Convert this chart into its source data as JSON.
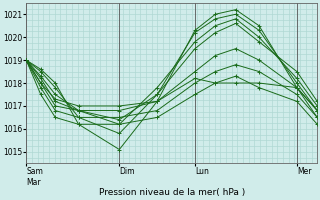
{
  "xlabel": "Pression niveau de la mer( hPa )",
  "ylim": [
    1014.5,
    1021.5
  ],
  "yticks": [
    1015,
    1016,
    1017,
    1018,
    1019,
    1020,
    1021
  ],
  "xtick_labels": [
    "Sam\nMar",
    "Dim",
    "Lun",
    "Mer"
  ],
  "xtick_positions": [
    0.0,
    0.32,
    0.58,
    0.93
  ],
  "day_vlines": [
    0.0,
    0.32,
    0.58,
    0.93
  ],
  "bg_color": "#d0ecea",
  "grid_color": "#b0d8d4",
  "line_color": "#1a6b1a",
  "xlim": [
    0.0,
    1.0
  ],
  "lines": [
    {
      "x": [
        0.0,
        0.05,
        0.1,
        0.18,
        0.32,
        0.45,
        0.58,
        0.65,
        0.72,
        0.8,
        0.93,
        1.0
      ],
      "y": [
        1019.0,
        1018.6,
        1018.0,
        1016.2,
        1015.1,
        1017.2,
        1020.3,
        1021.0,
        1021.2,
        1020.5,
        1017.8,
        1016.5
      ]
    },
    {
      "x": [
        0.0,
        0.05,
        0.1,
        0.18,
        0.32,
        0.45,
        0.58,
        0.65,
        0.72,
        0.8,
        0.93,
        1.0
      ],
      "y": [
        1019.0,
        1018.5,
        1017.8,
        1016.5,
        1015.8,
        1017.5,
        1020.2,
        1020.8,
        1021.0,
        1020.3,
        1018.0,
        1016.8
      ]
    },
    {
      "x": [
        0.0,
        0.05,
        0.1,
        0.18,
        0.32,
        0.45,
        0.58,
        0.65,
        0.72,
        0.8,
        0.93,
        1.0
      ],
      "y": [
        1019.0,
        1018.3,
        1017.5,
        1016.8,
        1016.2,
        1017.8,
        1019.8,
        1020.5,
        1020.8,
        1020.0,
        1018.2,
        1017.0
      ]
    },
    {
      "x": [
        0.0,
        0.05,
        0.1,
        0.18,
        0.32,
        0.45,
        0.58,
        0.65,
        0.72,
        0.8,
        0.93,
        1.0
      ],
      "y": [
        1019.0,
        1018.2,
        1017.2,
        1016.8,
        1016.4,
        1017.5,
        1019.5,
        1020.2,
        1020.6,
        1019.8,
        1018.5,
        1017.2
      ]
    },
    {
      "x": [
        0.0,
        0.05,
        0.1,
        0.18,
        0.32,
        0.45,
        0.58,
        0.65,
        0.72,
        0.8,
        0.93,
        1.0
      ],
      "y": [
        1019.0,
        1018.0,
        1017.0,
        1016.8,
        1016.8,
        1017.2,
        1018.5,
        1019.2,
        1019.5,
        1019.0,
        1017.8,
        1016.8
      ]
    },
    {
      "x": [
        0.0,
        0.05,
        0.1,
        0.18,
        0.32,
        0.45,
        0.58,
        0.65,
        0.72,
        0.8,
        0.93,
        1.0
      ],
      "y": [
        1019.0,
        1017.8,
        1016.8,
        1016.5,
        1016.5,
        1016.8,
        1018.0,
        1018.5,
        1018.8,
        1018.5,
        1017.5,
        1016.5
      ]
    },
    {
      "x": [
        0.0,
        0.05,
        0.1,
        0.18,
        0.32,
        0.45,
        0.58,
        0.65,
        0.72,
        0.8,
        0.93,
        1.0
      ],
      "y": [
        1019.0,
        1017.5,
        1016.5,
        1016.2,
        1016.2,
        1016.5,
        1017.5,
        1018.0,
        1018.3,
        1017.8,
        1017.2,
        1016.2
      ]
    },
    {
      "x": [
        0.0,
        0.05,
        0.1,
        0.18,
        0.32,
        0.45,
        0.58,
        0.65,
        0.72,
        0.8,
        0.93,
        1.0
      ],
      "y": [
        1019.0,
        1018.0,
        1017.3,
        1017.0,
        1017.0,
        1017.2,
        1018.2,
        1018.0,
        1018.0,
        1018.0,
        1017.8,
        1016.8
      ]
    }
  ],
  "marker": "+"
}
